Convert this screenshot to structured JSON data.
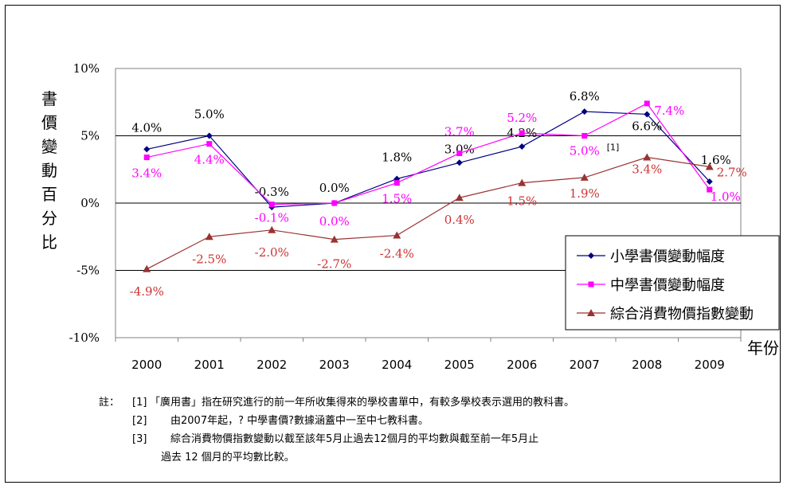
{
  "chart_data": {
    "type": "line",
    "ylabel": "書價變動百分比",
    "xlabel": "年份",
    "categories": [
      "2000",
      "2001",
      "2002",
      "2003",
      "2004",
      "2005",
      "2006",
      "2007",
      "2008",
      "2009"
    ],
    "yticks": [
      "10%",
      "5%",
      "0%",
      "-5%",
      "-10%"
    ],
    "ylim": [
      -10,
      10
    ],
    "grid": true,
    "legend": "right",
    "series": [
      {
        "name": "小學書價變動幅度",
        "color": "#000080",
        "marker": "diamond",
        "values": [
          4.0,
          5.0,
          -0.3,
          0.0,
          1.8,
          3.0,
          4.2,
          6.8,
          6.6,
          1.6
        ],
        "labels": [
          "4.0%",
          "5.0%",
          "-0.3%",
          "0.0%",
          "1.8%",
          "3.0%",
          "4.2%",
          "6.8%",
          "6.6%",
          "1.6%"
        ]
      },
      {
        "name": "中學書價變動幅度",
        "color": "#ff00ff",
        "marker": "square",
        "values": [
          3.4,
          4.4,
          -0.1,
          0.0,
          1.5,
          3.7,
          5.2,
          5.0,
          7.4,
          1.0
        ],
        "labels": [
          "3.4%",
          "4.4%",
          "-0.1%",
          "0.0%",
          "1.5%",
          "3.7%",
          "5.2%",
          "5.0%",
          "7.4%",
          "1.0%"
        ]
      },
      {
        "name": "綜合消費物價指數變動",
        "color": "#993333",
        "marker": "triangle",
        "values": [
          -4.9,
          -2.5,
          -2.0,
          -2.7,
          -2.4,
          0.4,
          1.5,
          1.9,
          3.4,
          2.7
        ],
        "labels": [
          "-4.9%",
          "-2.5%",
          "-2.0%",
          "-2.7%",
          "-2.4%",
          "0.4%",
          "1.5%",
          "1.9%",
          "3.4%",
          "2.7%"
        ]
      }
    ],
    "annotation": "[1]",
    "label_colors": {
      "primary": "#000000",
      "secondary": "#ff00ff",
      "cpi": "#cc3333"
    }
  },
  "notes": {
    "head": "註：",
    "items": [
      {
        "mark": "[1]",
        "text": "「廣用書」指在研究進行的前一年所收集得來的學校書單中，有較多學校表示選用的教科書。"
      },
      {
        "mark": "[2]",
        "text": "由2007年起，? 中學書價?數據涵蓋中一至中七教科書。"
      },
      {
        "mark": "[3]",
        "text": "綜合消費物價指數變動以截至該年5月止過去12個月的平均數與截至前一年5月止"
      }
    ],
    "continuation": "過去 12 個月的平均數比較。"
  }
}
